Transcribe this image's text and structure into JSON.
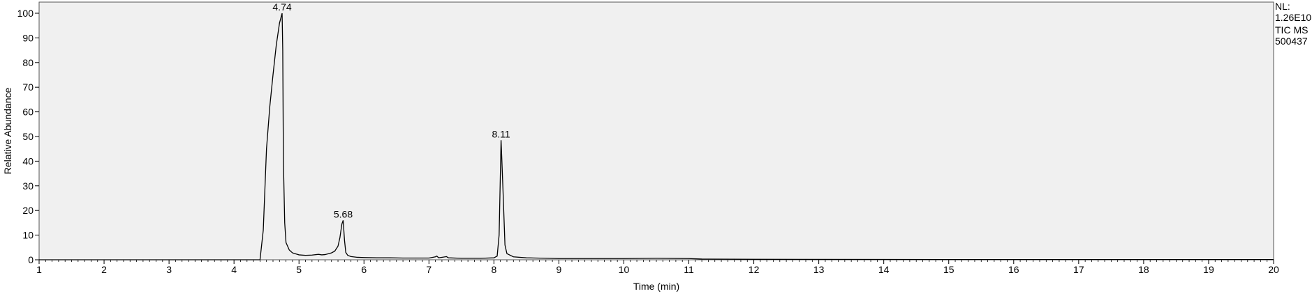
{
  "chart_data": {
    "type": "line",
    "title": "",
    "xlabel": "Time (min)",
    "ylabel": "Relative Abundance",
    "xlim": [
      1,
      20
    ],
    "ylim": [
      0,
      100
    ],
    "x_ticks": [
      1,
      2,
      3,
      4,
      5,
      6,
      7,
      8,
      9,
      10,
      11,
      12,
      13,
      14,
      15,
      16,
      17,
      18,
      19,
      20
    ],
    "y_ticks": [
      0,
      10,
      20,
      30,
      40,
      50,
      60,
      70,
      80,
      90,
      100
    ],
    "grid": false,
    "plot_background": "#f0f0f0",
    "line_color": "#000000",
    "info": [
      "NL:",
      "1.26E10",
      "TIC  MS",
      "500437"
    ],
    "peak_labels": [
      {
        "label": "4.74",
        "x": 4.74,
        "y": 100
      },
      {
        "label": "5.68",
        "x": 5.68,
        "y": 16
      },
      {
        "label": "8.11",
        "x": 8.11,
        "y": 48.5
      }
    ],
    "series": [
      {
        "x": [
          1.0,
          4.4,
          4.45,
          4.5,
          4.55,
          4.6,
          4.65,
          4.7,
          4.74,
          4.75,
          4.76,
          4.78,
          4.8,
          4.85,
          4.9,
          5.0,
          5.1,
          5.2,
          5.3,
          5.35,
          5.4,
          5.5,
          5.55,
          5.6,
          5.63,
          5.66,
          5.68,
          5.7,
          5.72,
          5.75,
          5.8,
          5.9,
          6.0,
          6.2,
          6.4,
          6.6,
          7.0,
          7.1,
          7.12,
          7.15,
          7.25,
          7.27,
          7.3,
          7.5,
          7.8,
          8.0,
          8.05,
          8.08,
          8.11,
          8.12,
          8.14,
          8.17,
          8.2,
          8.3,
          8.5,
          9.0,
          10.0,
          10.5,
          11.0,
          11.2,
          12.0,
          15.0,
          20.0
        ],
        "y": [
          0.0,
          0.0,
          12.0,
          45.0,
          62.0,
          75.0,
          87.0,
          96.0,
          100.0,
          85.0,
          40.0,
          15.0,
          7.0,
          4.0,
          2.8,
          2.0,
          1.8,
          1.9,
          2.2,
          2.0,
          2.1,
          2.8,
          3.5,
          5.5,
          9.0,
          14.5,
          16.0,
          8.0,
          3.0,
          1.8,
          1.3,
          1.0,
          0.9,
          0.8,
          0.8,
          0.7,
          0.7,
          1.2,
          1.5,
          0.8,
          1.2,
          1.3,
          0.8,
          0.6,
          0.6,
          0.8,
          1.5,
          10.0,
          48.5,
          42.0,
          28.0,
          6.0,
          2.5,
          1.2,
          0.8,
          0.5,
          0.5,
          0.6,
          0.5,
          0.3,
          0.2,
          0.1,
          0.1
        ]
      }
    ]
  }
}
